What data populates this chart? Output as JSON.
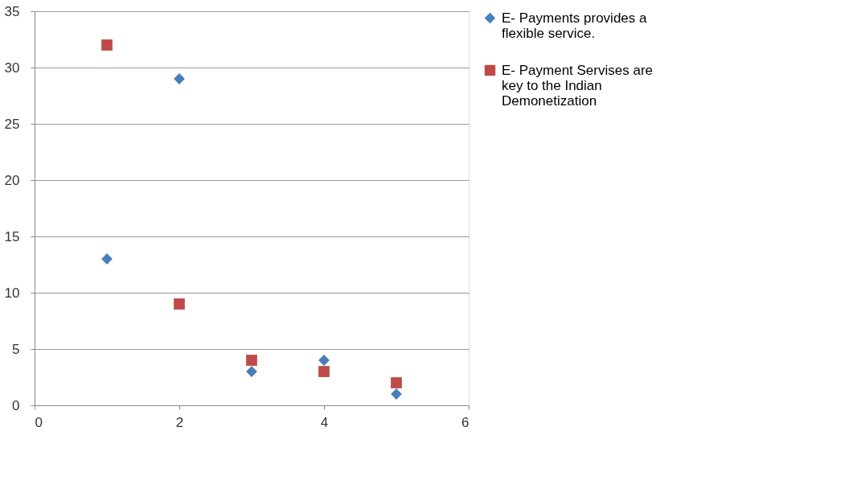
{
  "chart_data": {
    "type": "scatter",
    "series": [
      {
        "name": "E- Payments provides a flexible service.",
        "color": "#4a7ebb",
        "marker": "diamond",
        "x": [
          1,
          2,
          3,
          4,
          5
        ],
        "values": [
          13,
          29,
          3,
          4,
          1
        ]
      },
      {
        "name": "E- Payment Servises are key to the Indian Demonetization",
        "color": "#be4b48",
        "marker": "square",
        "x": [
          1,
          2,
          3,
          4,
          5
        ],
        "values": [
          32,
          9,
          4,
          3,
          2
        ]
      }
    ],
    "xlim": [
      0,
      6
    ],
    "xticks": [
      0,
      2,
      4,
      6
    ],
    "ylim": [
      0,
      35
    ],
    "yticks": [
      0,
      5,
      10,
      15,
      20,
      25,
      30,
      35
    ],
    "grid": "y",
    "legend": "right"
  }
}
